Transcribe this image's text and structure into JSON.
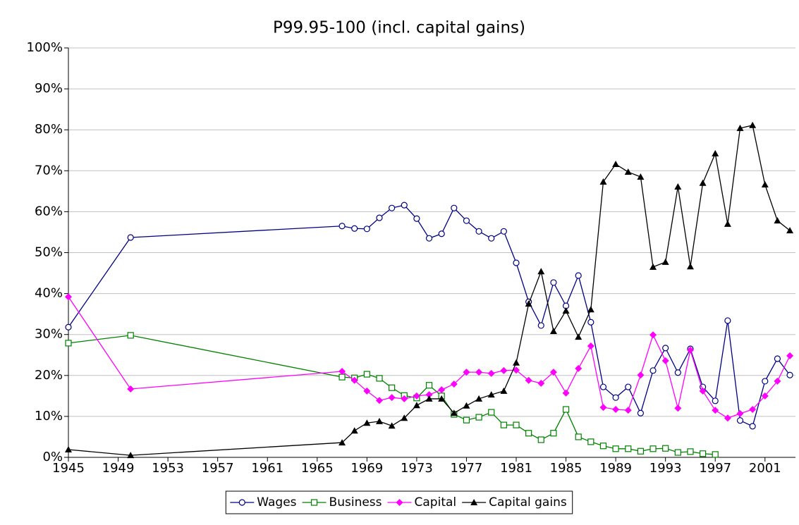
{
  "chart_data": {
    "type": "line",
    "title": "P99.95-100 (incl. capital gains)",
    "x": [
      1945,
      1950,
      1967,
      1968,
      1969,
      1970,
      1971,
      1972,
      1973,
      1974,
      1975,
      1976,
      1977,
      1978,
      1979,
      1980,
      1981,
      1982,
      1983,
      1984,
      1985,
      1986,
      1987,
      1988,
      1989,
      1990,
      1991,
      1992,
      1993,
      1994,
      1995,
      1996,
      1997,
      1998,
      1999,
      2000,
      2001,
      2002,
      2003
    ],
    "series": [
      {
        "name": "Wages",
        "color": "#000080",
        "marker": "circle",
        "values": [
          31.8,
          53.7,
          56.5,
          55.9,
          55.8,
          58.5,
          60.9,
          61.6,
          58.3,
          53.5,
          54.6,
          60.9,
          57.8,
          55.2,
          53.5,
          55.2,
          47.5,
          38.0,
          32.2,
          42.7,
          37.0,
          44.4,
          33.0,
          17.2,
          14.6,
          17.2,
          10.8,
          21.2,
          26.7,
          20.7,
          26.5,
          17.2,
          13.8,
          33.4,
          9.0,
          7.6,
          18.6,
          24.1,
          20.1
        ]
      },
      {
        "name": "Business",
        "color": "#008000",
        "marker": "square",
        "values": [
          27.9,
          29.8,
          19.6,
          19.4,
          20.3,
          19.3,
          17.0,
          15.1,
          14.5,
          17.6,
          15.0,
          10.5,
          9.1,
          9.8,
          11.0,
          7.9,
          7.9,
          5.9,
          4.3,
          5.9,
          11.7,
          5.0,
          3.8,
          2.8,
          2.1,
          2.1,
          1.5,
          2.1,
          2.2,
          1.2,
          1.4,
          0.9,
          0.7,
          null,
          null,
          null,
          null,
          null,
          null
        ]
      },
      {
        "name": "Capital",
        "color": "#ff00ff",
        "marker": "diamond",
        "values": [
          39.2,
          16.7,
          21.0,
          18.8,
          16.2,
          13.9,
          14.6,
          14.3,
          15.0,
          15.3,
          16.5,
          17.9,
          20.8,
          20.8,
          20.5,
          21.2,
          21.3,
          18.8,
          18.1,
          20.8,
          15.7,
          21.7,
          27.2,
          12.2,
          11.7,
          11.5,
          20.1,
          29.9,
          23.6,
          12.0,
          26.2,
          16.2,
          11.5,
          9.6,
          10.7,
          11.7,
          15.0,
          18.6,
          24.8
        ]
      },
      {
        "name": "Capital gains",
        "color": "#000000",
        "marker": "triangle",
        "values": [
          1.9,
          0.5,
          3.6,
          6.5,
          8.4,
          8.8,
          7.7,
          9.6,
          12.7,
          14.3,
          14.3,
          10.8,
          12.6,
          14.3,
          15.3,
          16.2,
          23.1,
          37.5,
          45.4,
          30.8,
          35.8,
          29.4,
          36.1,
          67.3,
          71.6,
          69.7,
          68.5,
          46.5,
          47.7,
          66.1,
          46.6,
          67.0,
          74.2,
          57.0,
          80.4,
          81.1,
          66.6,
          57.8,
          55.4
        ]
      }
    ],
    "xlim": [
      1945,
      2003.45
    ],
    "xticks": [
      1945,
      1949,
      1953,
      1957,
      1961,
      1965,
      1969,
      1973,
      1977,
      1981,
      1985,
      1989,
      1993,
      1997,
      2001
    ],
    "ylim": [
      0,
      100
    ],
    "yticks": [
      {
        "value": 0,
        "label": "0%"
      },
      {
        "value": 10,
        "label": "10%"
      },
      {
        "value": 20,
        "label": "20%"
      },
      {
        "value": 30,
        "label": "30%"
      },
      {
        "value": 40,
        "label": "40%"
      },
      {
        "value": 50,
        "label": "50%"
      },
      {
        "value": 60,
        "label": "60%"
      },
      {
        "value": 70,
        "label": "70%"
      },
      {
        "value": 80,
        "label": "80%"
      },
      {
        "value": 90,
        "label": "90%"
      },
      {
        "value": 100,
        "label": "100%"
      }
    ],
    "grid": true,
    "legend": "bottom"
  }
}
